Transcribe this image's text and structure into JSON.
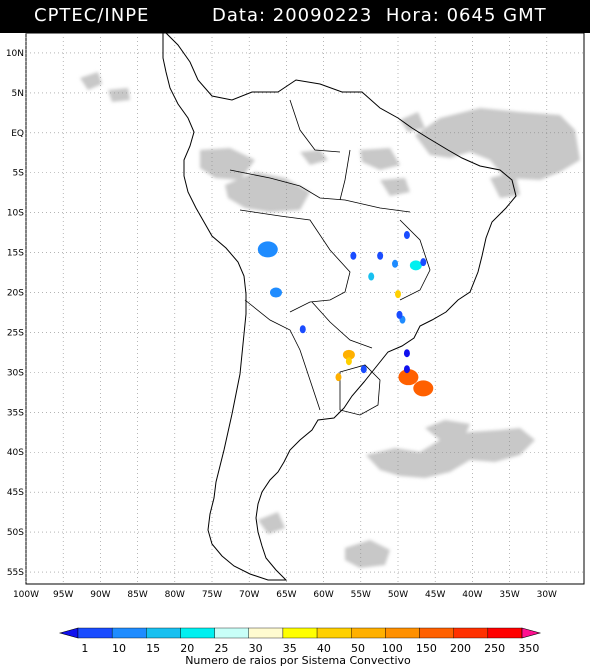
{
  "header": {
    "source": "CPTEC/INPE",
    "datetime": "Data: 20090223  Hora: 0645 GMT"
  },
  "axes": {
    "lat_labels": [
      "10N",
      "5N",
      "EQ",
      "5S",
      "10S",
      "15S",
      "20S",
      "25S",
      "30S",
      "35S",
      "40S",
      "45S",
      "50S",
      "55S"
    ],
    "lat_values": [
      10,
      5,
      0,
      -5,
      -10,
      -15,
      -20,
      -25,
      -30,
      -35,
      -40,
      -45,
      -50,
      -55
    ],
    "lon_labels": [
      "100W",
      "95W",
      "90W",
      "85W",
      "80W",
      "75W",
      "70W",
      "65W",
      "60W",
      "55W",
      "50W",
      "45W",
      "40W",
      "35W",
      "30W"
    ],
    "lon_values": [
      -100,
      -95,
      -90,
      -85,
      -80,
      -75,
      -70,
      -65,
      -60,
      -55,
      -50,
      -45,
      -40,
      -35,
      -30
    ]
  },
  "legend": {
    "labels": [
      "1",
      "10",
      "15",
      "20",
      "25",
      "30",
      "35",
      "40",
      "50",
      "100",
      "150",
      "200",
      "250",
      "350"
    ],
    "colors": [
      "#1010ee",
      "#1a4cff",
      "#1f8cff",
      "#18c0f0",
      "#00f0f0",
      "#c8fff8",
      "#fffbd0",
      "#ffff00",
      "#ffd000",
      "#ffb000",
      "#ff9000",
      "#ff6000",
      "#ff3000",
      "#ff0000",
      "#ff1090"
    ],
    "caption": "Numero de raios por Sistema Convectivo"
  },
  "convective_systems": [
    {
      "lon": -67.5,
      "lat": -14.6,
      "color": "#1f8cff",
      "size": "large"
    },
    {
      "lon": -66.4,
      "lat": -20.0,
      "color": "#1f8cff",
      "size": "medium"
    },
    {
      "lon": -62.8,
      "lat": -24.6,
      "color": "#1a4cff",
      "size": "small"
    },
    {
      "lon": -56.0,
      "lat": -15.4,
      "color": "#1a4cff",
      "size": "small"
    },
    {
      "lon": -52.4,
      "lat": -15.4,
      "color": "#1a4cff",
      "size": "small"
    },
    {
      "lon": -48.8,
      "lat": -12.8,
      "color": "#1a4cff",
      "size": "small"
    },
    {
      "lon": -50.4,
      "lat": -16.4,
      "color": "#1f8cff",
      "size": "small"
    },
    {
      "lon": -47.6,
      "lat": -16.6,
      "color": "#00f0f0",
      "size": "medium"
    },
    {
      "lon": -46.6,
      "lat": -16.2,
      "color": "#1a4cff",
      "size": "small"
    },
    {
      "lon": -53.6,
      "lat": -18.0,
      "color": "#18c0f0",
      "size": "small"
    },
    {
      "lon": -50.0,
      "lat": -20.2,
      "color": "#ffd000",
      "size": "small"
    },
    {
      "lon": -49.4,
      "lat": -23.4,
      "color": "#1f8cff",
      "size": "small"
    },
    {
      "lon": -49.8,
      "lat": -22.8,
      "color": "#1a4cff",
      "size": "small"
    },
    {
      "lon": -56.6,
      "lat": -27.8,
      "color": "#ffb000",
      "size": "medium"
    },
    {
      "lon": -56.6,
      "lat": -28.6,
      "color": "#ffd000",
      "size": "small"
    },
    {
      "lon": -48.8,
      "lat": -27.6,
      "color": "#1010ee",
      "size": "small"
    },
    {
      "lon": -48.6,
      "lat": -30.6,
      "color": "#ff6000",
      "size": "large"
    },
    {
      "lon": -46.6,
      "lat": -32.0,
      "color": "#ff6000",
      "size": "large"
    },
    {
      "lon": -54.6,
      "lat": -29.6,
      "color": "#1a4cff",
      "size": "small"
    },
    {
      "lon": -58.0,
      "lat": -30.6,
      "color": "#ffb000",
      "size": "small"
    },
    {
      "lon": -48.8,
      "lat": -29.6,
      "color": "#1010ee",
      "size": "small"
    }
  ],
  "colors": {
    "background": "#ffffff",
    "cloud": "#c8c8c8",
    "border": "#000000",
    "grid": "#888888"
  }
}
